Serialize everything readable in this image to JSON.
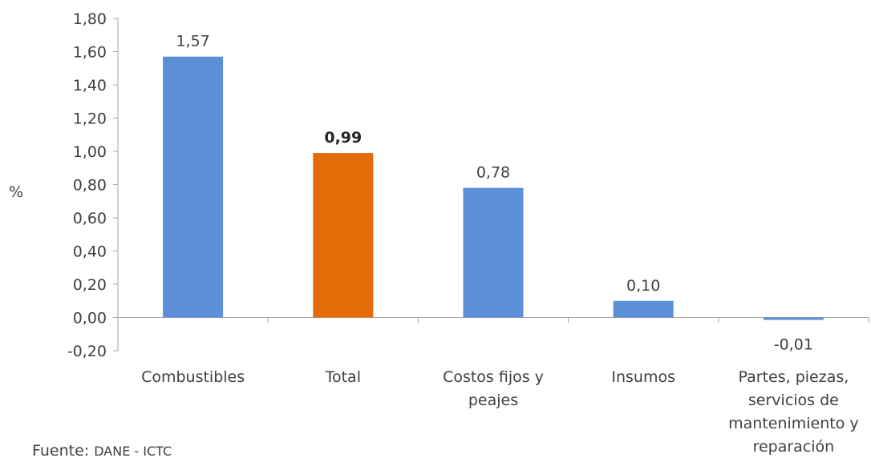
{
  "chart_data": {
    "type": "bar",
    "ylabel": "%",
    "categories": [
      "Combustibles",
      "Total",
      "Costos fijos y peajes",
      "Insumos",
      "Partes, piezas, servicios de mantenimiento y reparación"
    ],
    "category_lines": [
      [
        "Combustibles"
      ],
      [
        "Total"
      ],
      [
        "Costos fijos y",
        "peajes"
      ],
      [
        "Insumos"
      ],
      [
        "Partes, piezas,",
        "servicios de",
        "mantenimiento y",
        "reparación"
      ]
    ],
    "values": [
      1.57,
      0.99,
      0.78,
      0.1,
      -0.01
    ],
    "value_labels": [
      "1,57",
      "0,99",
      "0,78",
      "0,10",
      "-0,01"
    ],
    "highlight_index": 1,
    "ylim": [
      -0.2,
      1.8
    ],
    "yticks": [
      -0.2,
      0.0,
      0.2,
      0.4,
      0.6,
      0.8,
      1.0,
      1.2,
      1.4,
      1.6,
      1.8
    ],
    "ytick_labels": [
      "-0,20",
      "0,00",
      "0,20",
      "0,40",
      "0,60",
      "0,80",
      "1,00",
      "1,20",
      "1,40",
      "1,60",
      "1,80"
    ],
    "colors": {
      "default": "#5B8FD6",
      "highlight": "#E36C09",
      "axis": "#A6A6A6"
    },
    "grid": false,
    "legend": "none"
  },
  "source": {
    "prefix": "Fuente: ",
    "org": "DANE - ICTC"
  }
}
